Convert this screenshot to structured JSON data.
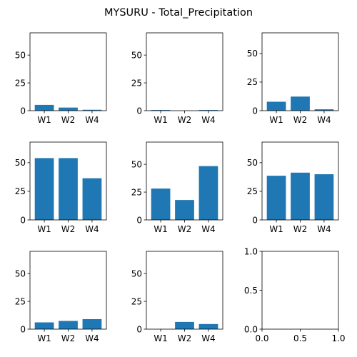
{
  "figure": {
    "title": "MYSURU - Total_Precipitation"
  },
  "colors": {
    "bar": "#1f77b4",
    "axis": "#000000",
    "background": "#ffffff"
  },
  "chart_data": [
    {
      "type": "bar",
      "categories": [
        "W1",
        "W2",
        "W4"
      ],
      "values": [
        5.2,
        2.8,
        0.8
      ],
      "ylim": [
        0,
        70
      ],
      "yticks": [
        0,
        25,
        50
      ],
      "grid": false
    },
    {
      "type": "bar",
      "categories": [
        "W1",
        "W2",
        "W4"
      ],
      "values": [
        0.6,
        0.0,
        0.6
      ],
      "ylim": [
        0,
        70
      ],
      "yticks": [
        0,
        25,
        50
      ],
      "grid": false
    },
    {
      "type": "bar",
      "categories": [
        "W1",
        "W2",
        "W4"
      ],
      "values": [
        7.8,
        12.3,
        1.2
      ],
      "ylim": [
        0,
        68
      ],
      "yticks": [
        0,
        25,
        50
      ],
      "grid": false
    },
    {
      "type": "bar",
      "categories": [
        "W1",
        "W2",
        "W4"
      ],
      "values": [
        54.0,
        54.0,
        36.4
      ],
      "ylim": [
        0,
        68
      ],
      "yticks": [
        0,
        25,
        50
      ],
      "grid": false
    },
    {
      "type": "bar",
      "categories": [
        "W1",
        "W2",
        "W4"
      ],
      "values": [
        28.2,
        17.9,
        48.4
      ],
      "ylim": [
        0,
        70
      ],
      "yticks": [
        0,
        25,
        50
      ],
      "grid": false
    },
    {
      "type": "bar",
      "categories": [
        "W1",
        "W2",
        "W4"
      ],
      "values": [
        38.6,
        41.3,
        39.9
      ],
      "ylim": [
        0,
        68
      ],
      "yticks": [
        0,
        25,
        50
      ],
      "grid": false
    },
    {
      "type": "bar",
      "categories": [
        "W1",
        "W2",
        "W4"
      ],
      "values": [
        6.1,
        7.4,
        9.0
      ],
      "ylim": [
        0,
        70
      ],
      "yticks": [
        0,
        25,
        50
      ],
      "grid": false
    },
    {
      "type": "bar",
      "categories": [
        "W1",
        "W2",
        "W4"
      ],
      "values": [
        0.0,
        6.5,
        4.6
      ],
      "ylim": [
        0,
        70
      ],
      "yticks": [
        0,
        25,
        50
      ],
      "grid": false
    },
    {
      "type": "empty",
      "xlim": [
        0,
        1
      ],
      "ylim": [
        0,
        1
      ],
      "xticks": [
        "0.0",
        "0.5",
        "1.0"
      ],
      "yticks": [
        "0.0",
        "0.5",
        "1.0"
      ]
    }
  ]
}
